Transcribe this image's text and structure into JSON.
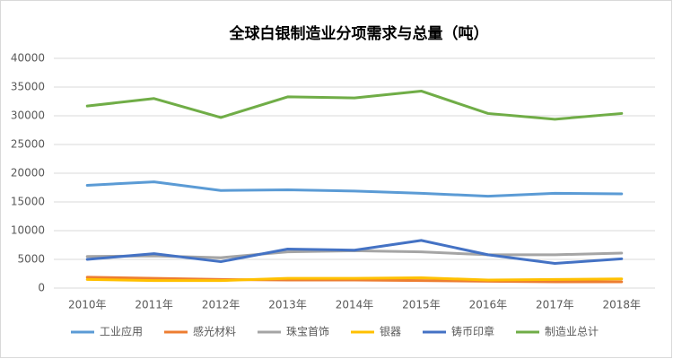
{
  "chart_data": {
    "type": "line",
    "title": "全球白银制造业分项需求与总量（吨）",
    "categories": [
      "2010年",
      "2011年",
      "2012年",
      "2013年",
      "2014年",
      "2015年",
      "2016年",
      "2017年",
      "2018年"
    ],
    "series": [
      {
        "name": "工业应用",
        "color": "#5b9bd5",
        "values": [
          17900,
          18500,
          17000,
          17100,
          16900,
          16500,
          16000,
          16500,
          16400
        ]
      },
      {
        "name": "感光材料",
        "color": "#ed7d31",
        "values": [
          1900,
          1700,
          1500,
          1400,
          1400,
          1300,
          1200,
          1100,
          1100
        ]
      },
      {
        "name": "珠宝首饰",
        "color": "#a5a5a5",
        "values": [
          5500,
          5600,
          5300,
          6300,
          6500,
          6300,
          5800,
          5800,
          6100
        ]
      },
      {
        "name": "银器",
        "color": "#ffc000",
        "values": [
          1500,
          1300,
          1300,
          1700,
          1700,
          1800,
          1400,
          1500,
          1600
        ]
      },
      {
        "name": "铸币印章",
        "color": "#4472c4",
        "values": [
          5000,
          6000,
          4600,
          6800,
          6600,
          8300,
          5800,
          4300,
          5100
        ]
      },
      {
        "name": "制造业总计",
        "color": "#70ad47",
        "values": [
          31700,
          33000,
          29700,
          33300,
          33100,
          34300,
          30400,
          29400,
          30400
        ]
      }
    ],
    "ylim": [
      0,
      40000
    ],
    "yticks": [
      0,
      5000,
      10000,
      15000,
      20000,
      25000,
      30000,
      35000,
      40000
    ],
    "grid": true,
    "legend": "bottom"
  }
}
